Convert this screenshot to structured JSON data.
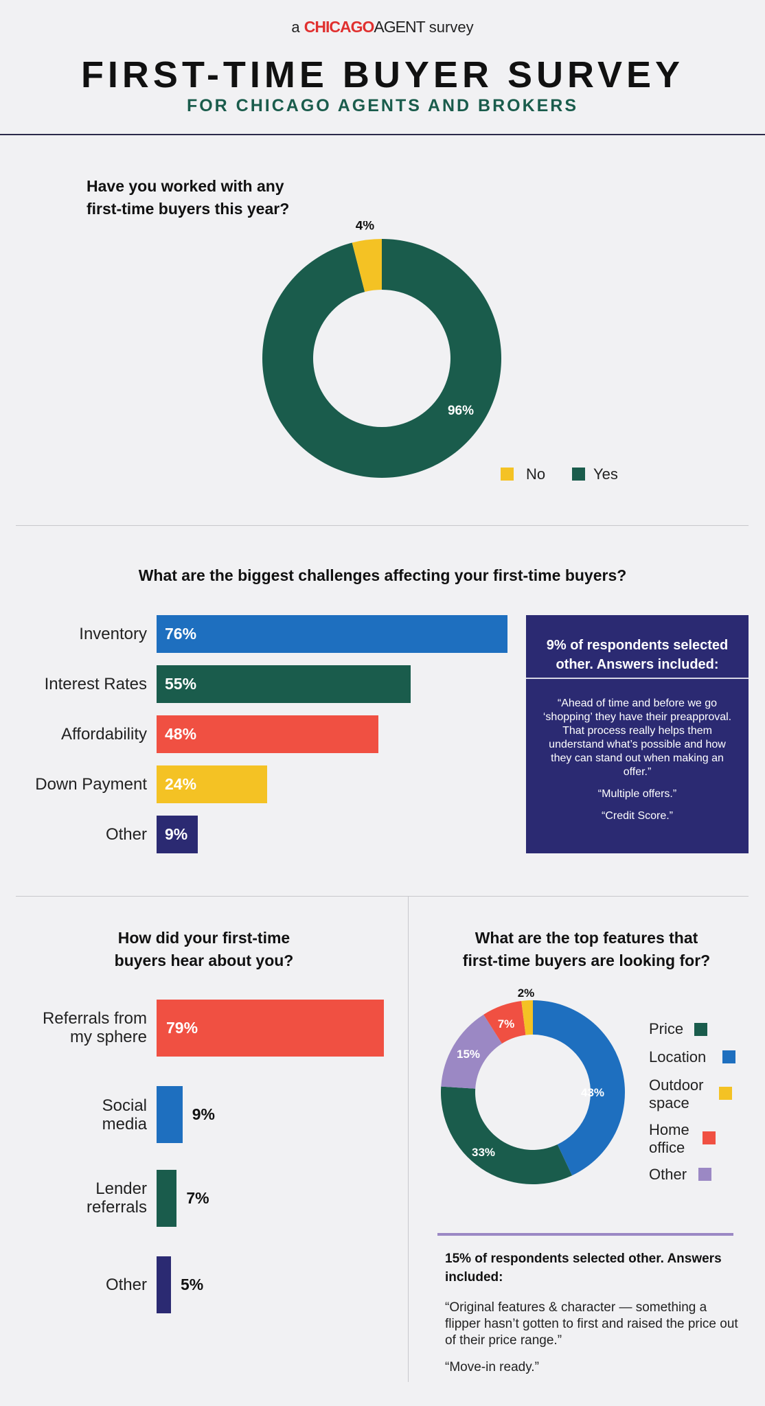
{
  "header": {
    "brand_prefix": "a",
    "brand_logo_1": "CHICAGO",
    "brand_logo_2": "AGENT",
    "brand_suffix": "survey",
    "title": "FIRST-TIME BUYER SURVEY",
    "subtitle": "FOR CHICAGO AGENTS AND BROKERS"
  },
  "colors": {
    "green": "#1a5c4c",
    "blue": "#1e6fbf",
    "red": "#f05042",
    "yellow": "#f4c224",
    "navy": "#2b2a72",
    "purple": "#9b88c4"
  },
  "chart_data": [
    {
      "type": "pie",
      "title": "Have you worked with any first-time buyers this year?",
      "slices": [
        {
          "name": "Yes",
          "value": 96,
          "label": "96%",
          "color": "#1a5c4c"
        },
        {
          "name": "No",
          "value": 4,
          "label": "4%",
          "color": "#f4c224"
        }
      ],
      "legend": [
        "No",
        "Yes"
      ],
      "legend_placement": "bottom-right"
    },
    {
      "type": "bar",
      "orientation": "horizontal",
      "title": "What are the biggest challenges affecting your first-time buyers?",
      "categories": [
        "Inventory",
        "Interest Rates",
        "Affordability",
        "Down Payment",
        "Other"
      ],
      "values": [
        76,
        55,
        48,
        24,
        9
      ],
      "labels": [
        "76%",
        "55%",
        "48%",
        "24%",
        "9%"
      ],
      "colors": [
        "#1e6fbf",
        "#1a5c4c",
        "#f05042",
        "#f4c224",
        "#2b2a72"
      ]
    },
    {
      "type": "bar",
      "orientation": "horizontal",
      "title": "How did your first-time buyers hear about you?",
      "categories": [
        "Referrals from my sphere",
        "Social media",
        "Lender referrals",
        "Other"
      ],
      "values": [
        79,
        9,
        7,
        5
      ],
      "labels": [
        "79%",
        "9%",
        "7%",
        "5%"
      ],
      "colors": [
        "#f05042",
        "#1e6fbf",
        "#1a5c4c",
        "#2b2a72"
      ]
    },
    {
      "type": "pie",
      "title": "What are the top features that first-time buyers are looking for?",
      "slices": [
        {
          "name": "Location",
          "value": 43,
          "label": "43%",
          "color": "#1e6fbf"
        },
        {
          "name": "Price",
          "value": 33,
          "label": "33%",
          "color": "#1a5c4c"
        },
        {
          "name": "Other",
          "value": 15,
          "label": "15%",
          "color": "#9b88c4"
        },
        {
          "name": "Home office",
          "value": 7,
          "label": "7%",
          "color": "#f05042"
        },
        {
          "name": "Outdoor space",
          "value": 2,
          "label": "2%",
          "color": "#f4c224"
        }
      ],
      "legend": [
        "Price",
        "Location",
        "Outdoor space",
        "Home office",
        "Other"
      ],
      "legend_placement": "right"
    }
  ],
  "section1": {
    "question_line1": "Have you worked with any",
    "question_line2": "first-time buyers this year?",
    "legend_no": "No",
    "legend_yes": "Yes"
  },
  "section2": {
    "question": "What are the biggest challenges affecting your first-time buyers?",
    "box_title": "9% of respondents selected other. Answers included:",
    "quotes": [
      "“Ahead of time and before we go ‘shopping’ they have their preapproval. That process really helps them understand what’s possible and how they can stand out when making an offer.”",
      "“Multiple offers.”",
      "“Credit Score.”"
    ]
  },
  "section3": {
    "question_line1": "How did your first-time",
    "question_line2": "buyers hear about you?",
    "labels": [
      "Referrals from",
      "my sphere",
      "Social",
      "media",
      "Lender",
      "referrals",
      "Other"
    ]
  },
  "section4": {
    "question_line1": "What are the top features that",
    "question_line2": "first-time buyers are looking for?",
    "legend": [
      "Price",
      "Location",
      "Outdoor",
      "space",
      "Home",
      "office",
      "Other"
    ],
    "note_title": "15% of respondents selected other. Answers included:",
    "quotes": [
      "“Original features & character — something a flipper hasn’t gotten to first and raised the price out of their price range.”",
      "“Move-in ready.”"
    ]
  }
}
